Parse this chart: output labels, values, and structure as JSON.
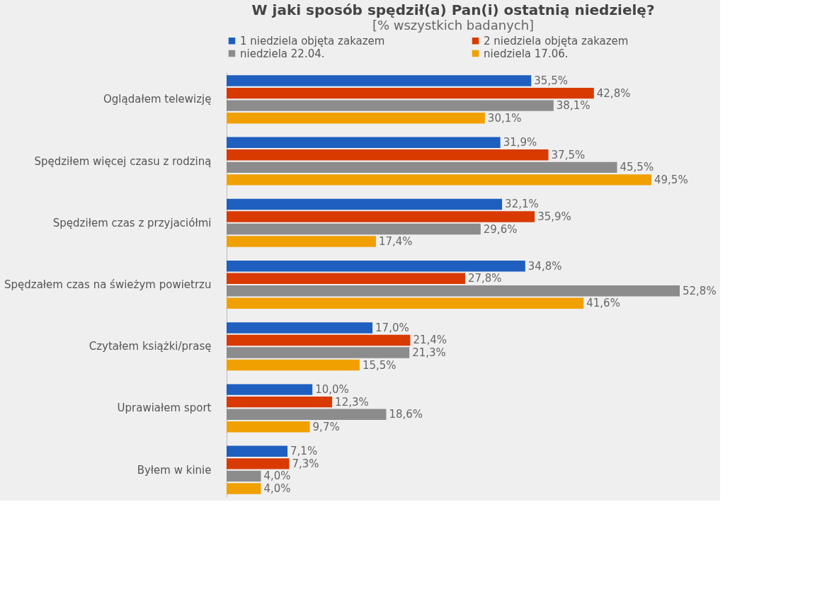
{
  "chart_data": {
    "type": "bar",
    "orientation": "horizontal",
    "title": "W jaki sposób spędził(a) Pan(i) ostatnią niedzielę?",
    "subtitle": "[% wszystkich badanych]",
    "categories": [
      "Oglądałem telewizję",
      "Spędziłem więcej czasu z rodziną",
      "Spędziłem czas z przyjaciółmi",
      "Spędzałem czas na świeżym powietrzu",
      "Czytałem książki/prasę",
      "Uprawiałem sport",
      "Byłem w kinie"
    ],
    "series": [
      {
        "name": "1 niedziela objęta zakazem",
        "color": "#1f5fbf",
        "values": [
          35.5,
          31.9,
          32.1,
          34.8,
          17.0,
          10.0,
          7.1
        ],
        "value_labels": [
          "35,5%",
          "31,9%",
          "32,1%",
          "34,8%",
          "17,0%",
          "10,0%",
          "7,1%"
        ]
      },
      {
        "name": "2 niedziela objęta zakazem",
        "color": "#d83a00",
        "values": [
          42.8,
          37.5,
          35.9,
          27.8,
          21.4,
          12.3,
          7.3
        ],
        "value_labels": [
          "42,8%",
          "37,5%",
          "35,9%",
          "27,8%",
          "21,4%",
          "12,3%",
          "7,3%"
        ]
      },
      {
        "name": "niedziela 22.04.",
        "color": "#8c8c8c",
        "values": [
          38.1,
          45.5,
          29.6,
          52.8,
          21.3,
          18.6,
          4.0
        ],
        "value_labels": [
          "38,1%",
          "45,5%",
          "29,6%",
          "52,8%",
          "21,3%",
          "18,6%",
          "4,0%"
        ]
      },
      {
        "name": "niedziela 17.06.",
        "color": "#f0a000",
        "values": [
          30.1,
          49.5,
          17.4,
          41.6,
          15.5,
          9.7,
          4.0
        ],
        "value_labels": [
          "30,1%",
          "49,5%",
          "17,4%",
          "41,6%",
          "15,5%",
          "9,7%",
          "4,0%"
        ]
      }
    ],
    "legend": "top",
    "grid": false
  }
}
